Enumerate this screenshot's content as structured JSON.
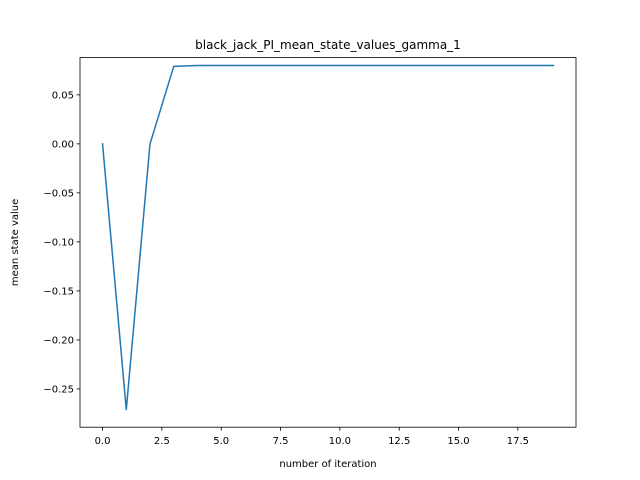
{
  "chart_data": {
    "type": "line",
    "title": "black_jack_PI_mean_state_values_gamma_1",
    "xlabel": "number of iteration",
    "ylabel": "mean state value",
    "xlim": [
      -0.95,
      19.95
    ],
    "ylim": [
      -0.289,
      0.088
    ],
    "xticks": [
      0.0,
      2.5,
      5.0,
      7.5,
      10.0,
      12.5,
      15.0,
      17.5
    ],
    "xtick_labels": [
      "0.0",
      "2.5",
      "5.0",
      "7.5",
      "10.0",
      "12.5",
      "15.0",
      "17.5"
    ],
    "yticks": [
      -0.25,
      -0.2,
      -0.15,
      -0.1,
      -0.05,
      0.0,
      0.05
    ],
    "ytick_labels": [
      "−0.25",
      "−0.20",
      "−0.15",
      "−0.10",
      "−0.05",
      "0.00",
      "0.05"
    ],
    "grid": false,
    "legend": "none",
    "series": [
      {
        "color": "#1f77b4",
        "x": [
          0,
          1,
          2,
          3,
          4,
          5,
          6,
          7,
          8,
          9,
          10,
          11,
          12,
          13,
          14,
          15,
          16,
          17,
          18,
          19
        ],
        "values": [
          0.0,
          -0.271,
          0.0,
          0.079,
          0.08,
          0.08,
          0.08,
          0.08,
          0.08,
          0.08,
          0.08,
          0.08,
          0.08,
          0.08,
          0.08,
          0.08,
          0.08,
          0.08,
          0.08,
          0.08
        ]
      }
    ]
  }
}
